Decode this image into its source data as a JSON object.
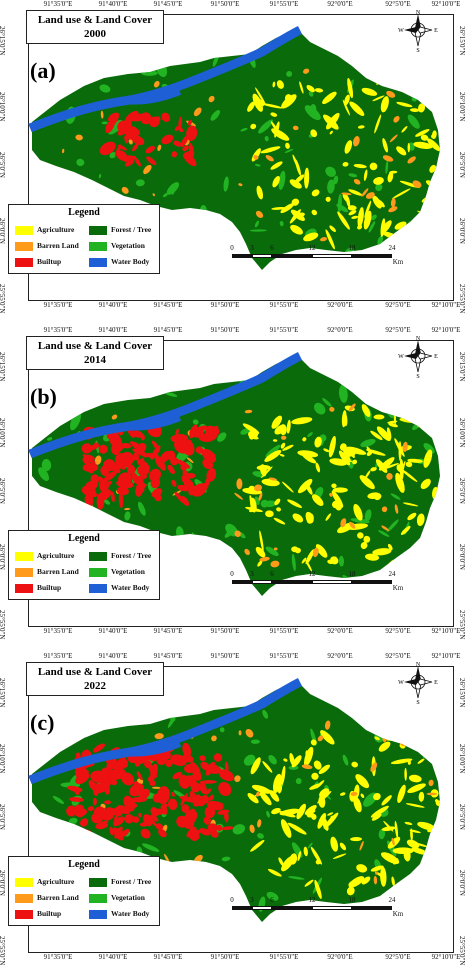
{
  "panels": [
    {
      "id": "a",
      "label": "(a)",
      "title_line1": "Land use & Land Cover",
      "title_line2": "2000",
      "builtup": 0.15,
      "agriculture": 0.18
    },
    {
      "id": "b",
      "label": "(b)",
      "title_line1": "Land use & Land Cover",
      "title_line2": "2014",
      "builtup": 0.45,
      "agriculture": 0.22
    },
    {
      "id": "c",
      "label": "(c)",
      "title_line1": "Land use & Land Cover",
      "title_line2": "2022",
      "builtup": 0.65,
      "agriculture": 0.2
    }
  ],
  "longitude_ticks": [
    "91°35'0\"E",
    "91°40'0\"E",
    "91°45'0\"E",
    "91°50'0\"E",
    "91°55'0\"E",
    "92°0'0\"E",
    "92°5'0\"E",
    "92°10'0\"E"
  ],
  "latitude_ticks_left": [
    "26°15'0\"N",
    "26°10'0\"N",
    "26°5'0\"N",
    "26°0'0\"N",
    "25°55'0\"N"
  ],
  "latitude_ticks_right": [
    "26°15'0\"N",
    "26°10'0\"N",
    "26°5'0\"N",
    "26°0'0\"N",
    "25°55'0\"N"
  ],
  "legend": {
    "title": "Legend",
    "items": [
      {
        "label": "Agriculture",
        "color": "#ffff00"
      },
      {
        "label": "Forest / Tree",
        "color": "#0a6b0a"
      },
      {
        "label": "Barren Land",
        "color": "#ff9a1a"
      },
      {
        "label": "Vegetation",
        "color": "#22b322"
      },
      {
        "label": "Builtup",
        "color": "#ee1111"
      },
      {
        "label": "Water Body",
        "color": "#1f5fd6"
      }
    ]
  },
  "scale": {
    "labels": [
      "0",
      "3",
      "6",
      "12",
      "18",
      "24"
    ],
    "unit": "Km"
  },
  "compass": {
    "n": "N",
    "s": "S",
    "e": "E",
    "w": "W"
  }
}
